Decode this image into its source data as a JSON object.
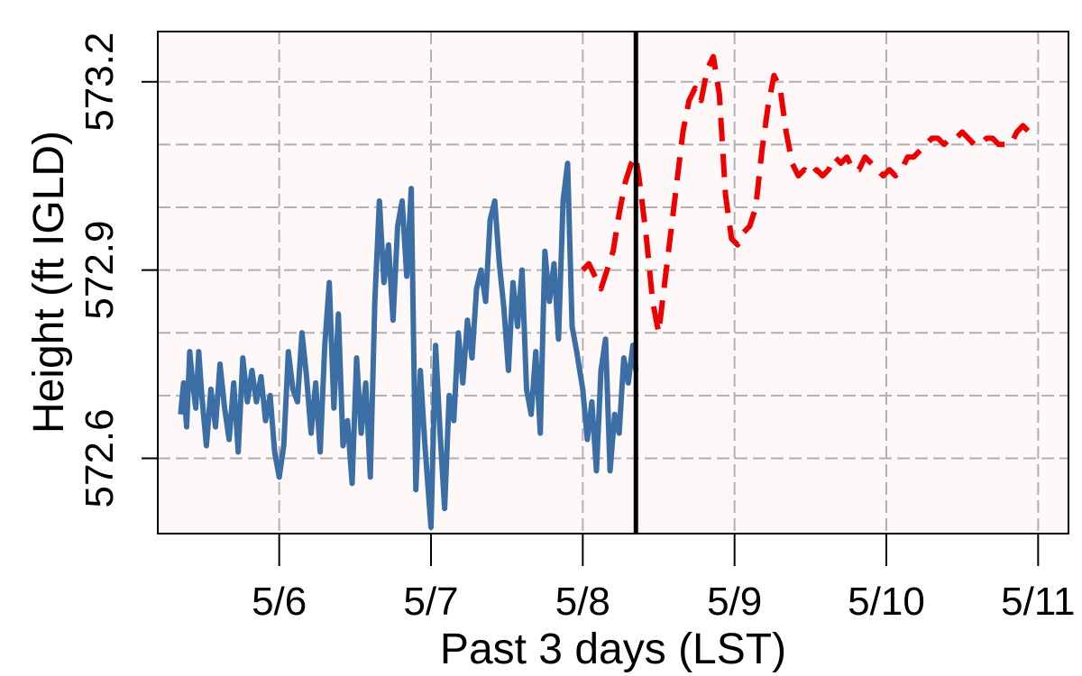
{
  "chart_data": {
    "type": "line",
    "xlabel": "Past 3 days (LST)",
    "ylabel": "Height (ft IGLD)",
    "x_ticks": [
      "5/6",
      "5/7",
      "5/8",
      "5/9",
      "5/10",
      "5/11"
    ],
    "y_ticks": [
      "572.6",
      "572.9",
      "573.2"
    ],
    "xlim": [
      -0.8,
      5.2
    ],
    "ylim": [
      572.48,
      573.28
    ],
    "grid": true,
    "now_marker": 2.35,
    "colors": {
      "plot_background": "#fff8f8",
      "observed": "#3a6ea5",
      "forecast": "#ee0000",
      "grid": "#b0b0b0",
      "now_line": "#000000"
    },
    "series": [
      {
        "style": "solid",
        "x": [
          -0.65,
          -0.63,
          -0.61,
          -0.59,
          -0.57,
          -0.55,
          -0.53,
          -0.51,
          -0.48,
          -0.45,
          -0.42,
          -0.39,
          -0.36,
          -0.33,
          -0.3,
          -0.27,
          -0.24,
          -0.21,
          -0.18,
          -0.15,
          -0.12,
          -0.09,
          -0.06,
          -0.03,
          0.0,
          0.03,
          0.06,
          0.09,
          0.12,
          0.15,
          0.18,
          0.21,
          0.24,
          0.27,
          0.3,
          0.33,
          0.36,
          0.39,
          0.42,
          0.45,
          0.48,
          0.51,
          0.54,
          0.57,
          0.6,
          0.63,
          0.66,
          0.69,
          0.72,
          0.75,
          0.78,
          0.81,
          0.84,
          0.87,
          0.9,
          0.93,
          0.96,
          1.0,
          1.03,
          1.06,
          1.09,
          1.12,
          1.15,
          1.18,
          1.21,
          1.24,
          1.27,
          1.3,
          1.33,
          1.36,
          1.39,
          1.42,
          1.45,
          1.48,
          1.51,
          1.54,
          1.57,
          1.6,
          1.63,
          1.66,
          1.69,
          1.72,
          1.75,
          1.78,
          1.81,
          1.84,
          1.87,
          1.9,
          1.93,
          1.96,
          2.0,
          2.03,
          2.06,
          2.09,
          2.12,
          2.15,
          2.18,
          2.21,
          2.24,
          2.27,
          2.3,
          2.33,
          2.35
        ],
        "y": [
          572.67,
          572.72,
          572.65,
          572.77,
          572.72,
          572.68,
          572.77,
          572.7,
          572.62,
          572.71,
          572.65,
          572.75,
          572.68,
          572.63,
          572.72,
          572.61,
          572.76,
          572.69,
          572.74,
          572.69,
          572.73,
          572.66,
          572.7,
          572.61,
          572.57,
          572.62,
          572.77,
          572.71,
          572.69,
          572.8,
          572.73,
          572.64,
          572.72,
          572.61,
          572.78,
          572.88,
          572.68,
          572.83,
          572.62,
          572.66,
          572.56,
          572.76,
          572.64,
          572.72,
          572.57,
          572.85,
          573.01,
          572.88,
          572.94,
          572.82,
          572.97,
          573.01,
          572.89,
          573.03,
          572.55,
          572.74,
          572.62,
          572.49,
          572.78,
          572.64,
          572.52,
          572.7,
          572.66,
          572.8,
          572.72,
          572.82,
          572.76,
          572.87,
          572.9,
          572.85,
          572.98,
          573.01,
          572.91,
          572.84,
          572.74,
          572.88,
          572.81,
          572.9,
          572.71,
          572.67,
          572.77,
          572.64,
          572.93,
          572.85,
          572.91,
          572.79,
          573.01,
          573.07,
          572.81,
          572.77,
          572.71,
          572.63,
          572.69,
          572.58,
          572.74,
          572.79,
          572.58,
          572.67,
          572.64,
          572.76,
          572.72,
          572.78,
          572.74
        ]
      },
      {
        "style": "dashed",
        "x": [
          2.0,
          2.04,
          2.08,
          2.12,
          2.16,
          2.2,
          2.24,
          2.28,
          2.32,
          2.35,
          2.38,
          2.42,
          2.46,
          2.5,
          2.54,
          2.58,
          2.62,
          2.66,
          2.7,
          2.74,
          2.78,
          2.82,
          2.86,
          2.9,
          2.94,
          2.98,
          3.02,
          3.06,
          3.1,
          3.14,
          3.18,
          3.22,
          3.26,
          3.3,
          3.34,
          3.38,
          3.42,
          3.46,
          3.5,
          3.54,
          3.58,
          3.62,
          3.66,
          3.7,
          3.74,
          3.78,
          3.82,
          3.86,
          3.9,
          3.94,
          3.98,
          4.02,
          4.06,
          4.1,
          4.14,
          4.18,
          4.22,
          4.26,
          4.3,
          4.34,
          4.38,
          4.42,
          4.46,
          4.5,
          4.54,
          4.58,
          4.62,
          4.66,
          4.7,
          4.74,
          4.78,
          4.82,
          4.86,
          4.9,
          4.94,
          4.98
        ],
        "y": [
          572.9,
          572.91,
          572.89,
          572.87,
          572.9,
          572.93,
          572.99,
          573.04,
          573.07,
          573.08,
          573.03,
          572.95,
          572.85,
          572.8,
          572.88,
          572.96,
          573.04,
          573.12,
          573.17,
          573.19,
          573.17,
          573.22,
          573.24,
          573.18,
          573.02,
          572.95,
          572.94,
          572.96,
          572.97,
          573.0,
          573.09,
          573.16,
          573.21,
          573.19,
          573.12,
          573.07,
          573.05,
          573.06,
          573.05,
          573.06,
          573.05,
          573.06,
          573.08,
          573.07,
          573.08,
          573.06,
          573.06,
          573.08,
          573.07,
          573.06,
          573.05,
          573.06,
          573.05,
          573.06,
          573.08,
          573.08,
          573.09,
          573.1,
          573.11,
          573.11,
          573.1,
          573.11,
          573.11,
          573.12,
          573.11,
          573.1,
          573.1,
          573.11,
          573.11,
          573.1,
          573.1,
          573.1,
          573.12,
          573.13,
          573.12,
          573.12
        ]
      }
    ]
  }
}
